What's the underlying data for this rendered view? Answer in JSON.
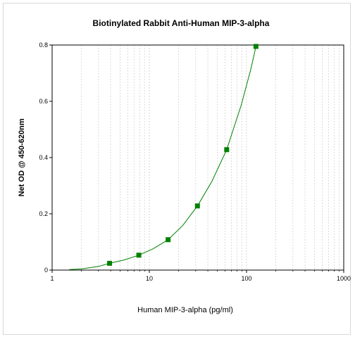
{
  "chart_data": {
    "type": "scatter",
    "title": "Biotinylated Rabbit Anti-Human MIP-3-alpha",
    "xlabel": "Human MIP-3-alpha (pg/ml)",
    "ylabel": "Net OD @ 450-620nm",
    "x_scale": "log",
    "xlim": [
      1,
      1000
    ],
    "ylim": [
      0,
      0.8
    ],
    "x_ticks": [
      {
        "value": 1,
        "label": "1"
      },
      {
        "value": 10,
        "label": "10"
      },
      {
        "value": 100,
        "label": "100"
      },
      {
        "value": 1000,
        "label": "1000"
      }
    ],
    "y_ticks": [
      {
        "value": 0,
        "label": "0"
      },
      {
        "value": 0.2,
        "label": "0.2"
      },
      {
        "value": 0.4,
        "label": "0.4"
      },
      {
        "value": 0.6,
        "label": "0.6"
      },
      {
        "value": 0.8,
        "label": "0.8"
      }
    ],
    "grid": true,
    "series": [
      {
        "color": "#008000",
        "marker": "square",
        "points": [
          {
            "x": 3.9,
            "y": 0.024
          },
          {
            "x": 7.8,
            "y": 0.053
          },
          {
            "x": 15.6,
            "y": 0.108
          },
          {
            "x": 31.25,
            "y": 0.228
          },
          {
            "x": 62.5,
            "y": 0.428
          },
          {
            "x": 125,
            "y": 0.795
          }
        ],
        "fit_curve": [
          {
            "x": 1.5,
            "y": 0.002
          },
          {
            "x": 2,
            "y": 0.004
          },
          {
            "x": 3,
            "y": 0.013
          },
          {
            "x": 3.9,
            "y": 0.024
          },
          {
            "x": 5.5,
            "y": 0.036
          },
          {
            "x": 7.8,
            "y": 0.053
          },
          {
            "x": 11,
            "y": 0.076
          },
          {
            "x": 15.6,
            "y": 0.108
          },
          {
            "x": 22,
            "y": 0.158
          },
          {
            "x": 31.25,
            "y": 0.228
          },
          {
            "x": 44,
            "y": 0.315
          },
          {
            "x": 62.5,
            "y": 0.428
          },
          {
            "x": 88,
            "y": 0.585
          },
          {
            "x": 110,
            "y": 0.71
          },
          {
            "x": 125,
            "y": 0.795
          }
        ]
      }
    ],
    "colors": {
      "grid": "#cccccc",
      "axis": "#000000",
      "series": "#008000"
    }
  }
}
